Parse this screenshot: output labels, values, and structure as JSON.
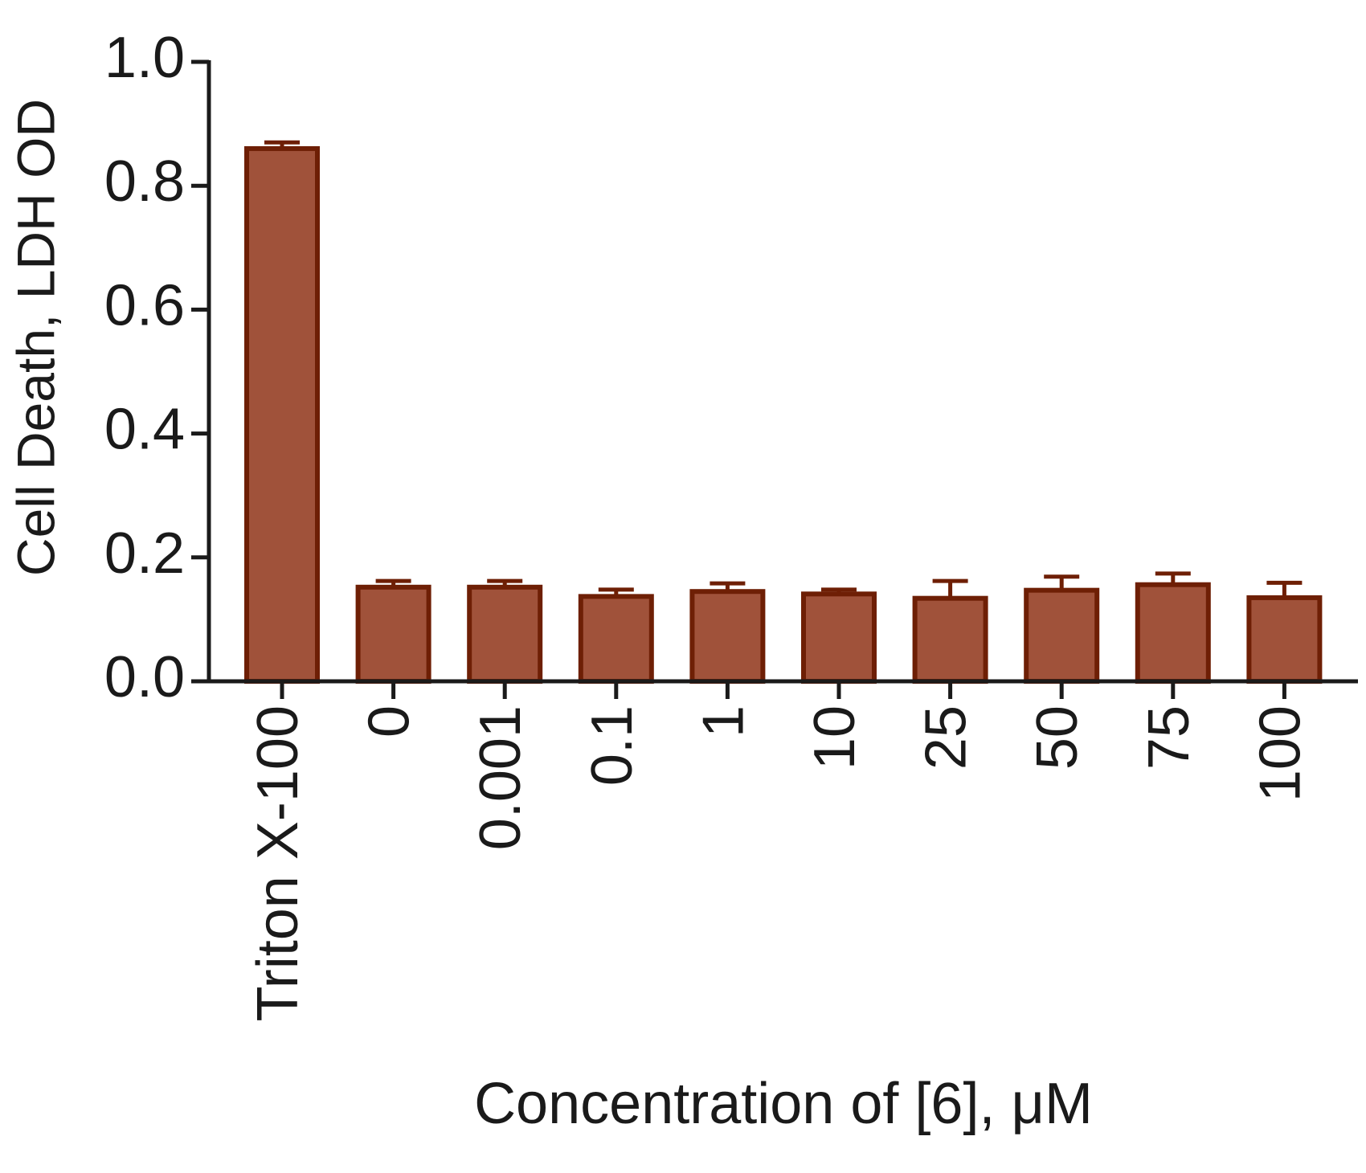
{
  "chart_data": {
    "type": "bar",
    "x_label": "Concentration of [6], μM",
    "y_label": "Cell Death, LDH OD",
    "categories": [
      "Triton X-100",
      "0",
      "0.001",
      "0.1",
      "1",
      "10",
      "25",
      "50",
      "75",
      "100"
    ],
    "values": [
      0.86,
      0.152,
      0.152,
      0.137,
      0.145,
      0.141,
      0.134,
      0.147,
      0.156,
      0.135
    ],
    "errors": [
      0.01,
      0.01,
      0.01,
      0.011,
      0.013,
      0.007,
      0.028,
      0.022,
      0.018,
      0.024
    ],
    "color": "#a0523a",
    "edge_color": "#6e1f05",
    "ylim": [
      0,
      1
    ],
    "yticks": [
      {
        "value": 0,
        "label": "0.0"
      },
      0.2,
      0.4,
      0.6,
      0.8,
      {
        "value": 1,
        "label": "1.0"
      }
    ]
  }
}
